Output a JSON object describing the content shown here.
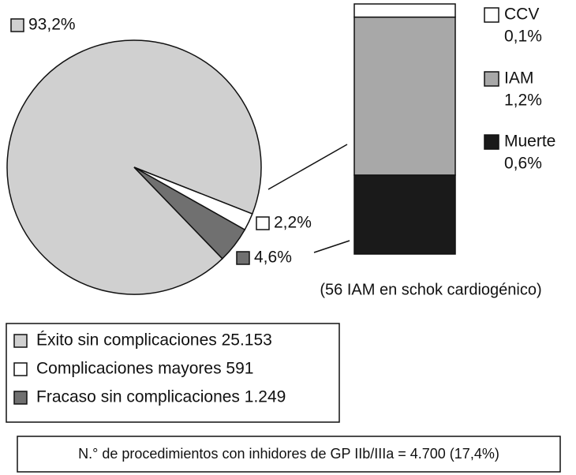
{
  "chart_data": [
    {
      "type": "pie",
      "categories": [
        "Éxito sin complicaciones 25.153",
        "Complicaciones mayores 591",
        "Fracaso sin complicaciones 1.249"
      ],
      "values": [
        93.2,
        2.2,
        4.6
      ],
      "value_labels": [
        "93,2%",
        "2,2%",
        "4,6%"
      ],
      "colors": [
        "#d0d0d0",
        "#ffffff",
        "#707070"
      ]
    },
    {
      "type": "bar",
      "stacked": true,
      "series": [
        {
          "name": "CCV",
          "color": "#ffffff",
          "values": [
            0.1
          ],
          "value_labels": [
            "0,1%"
          ]
        },
        {
          "name": "IAM",
          "color": "#a8a8a8",
          "values": [
            1.2
          ],
          "value_labels": [
            "1,2%"
          ]
        },
        {
          "name": "Muerte",
          "color": "#1a1a1a",
          "values": [
            0.6
          ],
          "value_labels": [
            "0,6%"
          ]
        }
      ],
      "note": "(56 IAM en schok cardiogénico)"
    }
  ],
  "footnote": "N.° de procedimientos con inhidores de GP IIb/IIIa = 4.700 (17,4%)"
}
